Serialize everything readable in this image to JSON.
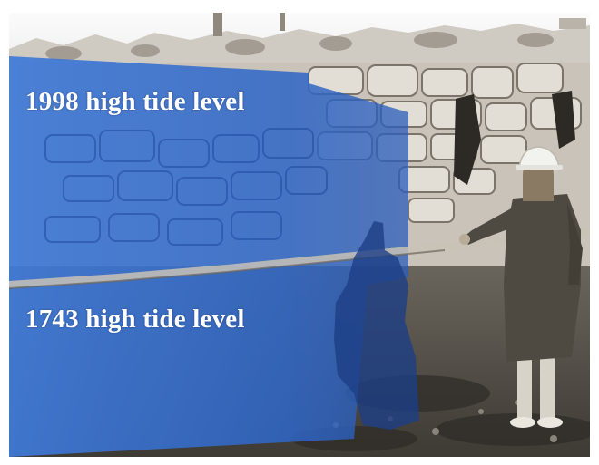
{
  "labels": {
    "upper_level": "1998 high tide level",
    "lower_level": "1743 high tide level"
  },
  "colors": {
    "overlay_blue": "#2f67c9",
    "sky": "#f3f4f6",
    "stone_light": "#d9d4cc",
    "stone_dark": "#4c4842",
    "coat": "#4f4a41",
    "helmet": "#f2f2ee",
    "label_text": "#ffffff"
  }
}
